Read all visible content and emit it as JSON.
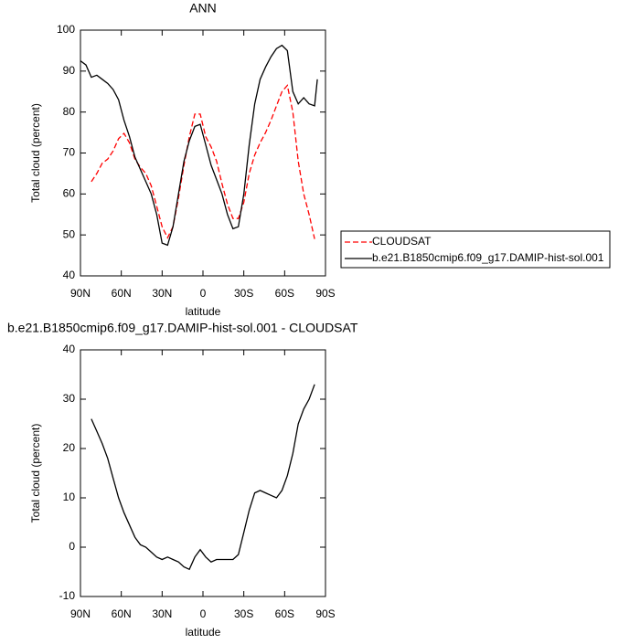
{
  "chart_data": [
    {
      "type": "line",
      "title": "ANN",
      "xlabel": "latitude",
      "ylabel": "Total cloud (percent)",
      "x": [
        90,
        86,
        82,
        78,
        74,
        70,
        66,
        62,
        58,
        54,
        50,
        46,
        42,
        38,
        34,
        30,
        26,
        22,
        18,
        14,
        10,
        6,
        2,
        -2,
        -6,
        -10,
        -14,
        -18,
        -22,
        -26,
        -30,
        -34,
        -38,
        -42,
        -46,
        -50,
        -54,
        -58,
        -62,
        -66,
        -70,
        -74,
        -78,
        -82,
        -84
      ],
      "series": [
        {
          "name": "CLOUDSAT",
          "color": "#ff0000",
          "line_style": "dashed",
          "values": [
            null,
            null,
            63,
            65,
            67.5,
            68.5,
            70.5,
            73.5,
            74.8,
            72.5,
            68.5,
            66.5,
            65,
            62,
            57,
            52,
            49.3,
            52,
            59,
            67,
            74,
            79.5,
            79.5,
            74,
            71.5,
            68,
            62.5,
            57.5,
            54,
            54,
            58,
            65,
            69.5,
            72.5,
            75,
            78,
            81.5,
            85,
            86.5,
            80,
            68,
            60,
            55,
            49,
            null
          ]
        },
        {
          "name": "b.e21.B1850cmip6.f09_g17.DAMIP-hist-sol.001",
          "color": "#000000",
          "line_style": "solid",
          "values": [
            92.5,
            91.5,
            88.5,
            89,
            88,
            87,
            85.5,
            83,
            78,
            74,
            69,
            66,
            63,
            60,
            55,
            48,
            47.5,
            52,
            60,
            68,
            73,
            76.5,
            77,
            72,
            67,
            63.5,
            60,
            55,
            51.5,
            52,
            60,
            72,
            82,
            88,
            91,
            93.5,
            95.5,
            96.3,
            95,
            85,
            82,
            83.5,
            82,
            81.5,
            88
          ]
        }
      ],
      "xlim": [
        90,
        -90
      ],
      "xticks": [
        {
          "value": 90,
          "label": "90N"
        },
        {
          "value": 60,
          "label": "60N"
        },
        {
          "value": 30,
          "label": "30N"
        },
        0,
        {
          "value": -30,
          "label": "30S"
        },
        {
          "value": -60,
          "label": "60S"
        },
        {
          "value": -90,
          "label": "90S"
        }
      ],
      "ylim": [
        40,
        100
      ],
      "yticks": [
        40,
        50,
        60,
        70,
        80,
        90,
        100
      ],
      "legend": "right"
    },
    {
      "type": "line",
      "title": "b.e21.B1850cmip6.f09_g17.DAMIP-hist-sol.001 - CLOUDSAT",
      "xlabel": "latitude",
      "ylabel": "Total cloud (percent)",
      "x": [
        82,
        78,
        74,
        70,
        66,
        62,
        58,
        54,
        50,
        46,
        42,
        38,
        34,
        30,
        26,
        22,
        18,
        14,
        10,
        6,
        2,
        -2,
        -6,
        -10,
        -14,
        -18,
        -22,
        -26,
        -30,
        -34,
        -38,
        -42,
        -46,
        -50,
        -54,
        -58,
        -62,
        -66,
        -70,
        -74,
        -78,
        -82
      ],
      "values": [
        26,
        23.5,
        21,
        18,
        14,
        10,
        7,
        4.5,
        2,
        0.5,
        0,
        -1,
        -2,
        -2.5,
        -2,
        -2.5,
        -3,
        -4,
        -4.5,
        -2,
        -0.5,
        -2,
        -3,
        -2.5,
        -2.5,
        -2.5,
        -2.5,
        -1.5,
        3,
        7.5,
        11,
        11.5,
        11,
        10.5,
        10,
        11.5,
        14.5,
        19,
        25,
        28,
        30,
        33
      ],
      "color": "#000000",
      "xlim": [
        90,
        -90
      ],
      "xticks": [
        {
          "value": 90,
          "label": "90N"
        },
        {
          "value": 60,
          "label": "60N"
        },
        {
          "value": 30,
          "label": "30N"
        },
        0,
        {
          "value": -30,
          "label": "30S"
        },
        {
          "value": -60,
          "label": "60S"
        },
        {
          "value": -90,
          "label": "90S"
        }
      ],
      "ylim": [
        -10,
        40
      ],
      "yticks": [
        -10,
        0,
        10,
        20,
        30,
        40
      ]
    }
  ]
}
